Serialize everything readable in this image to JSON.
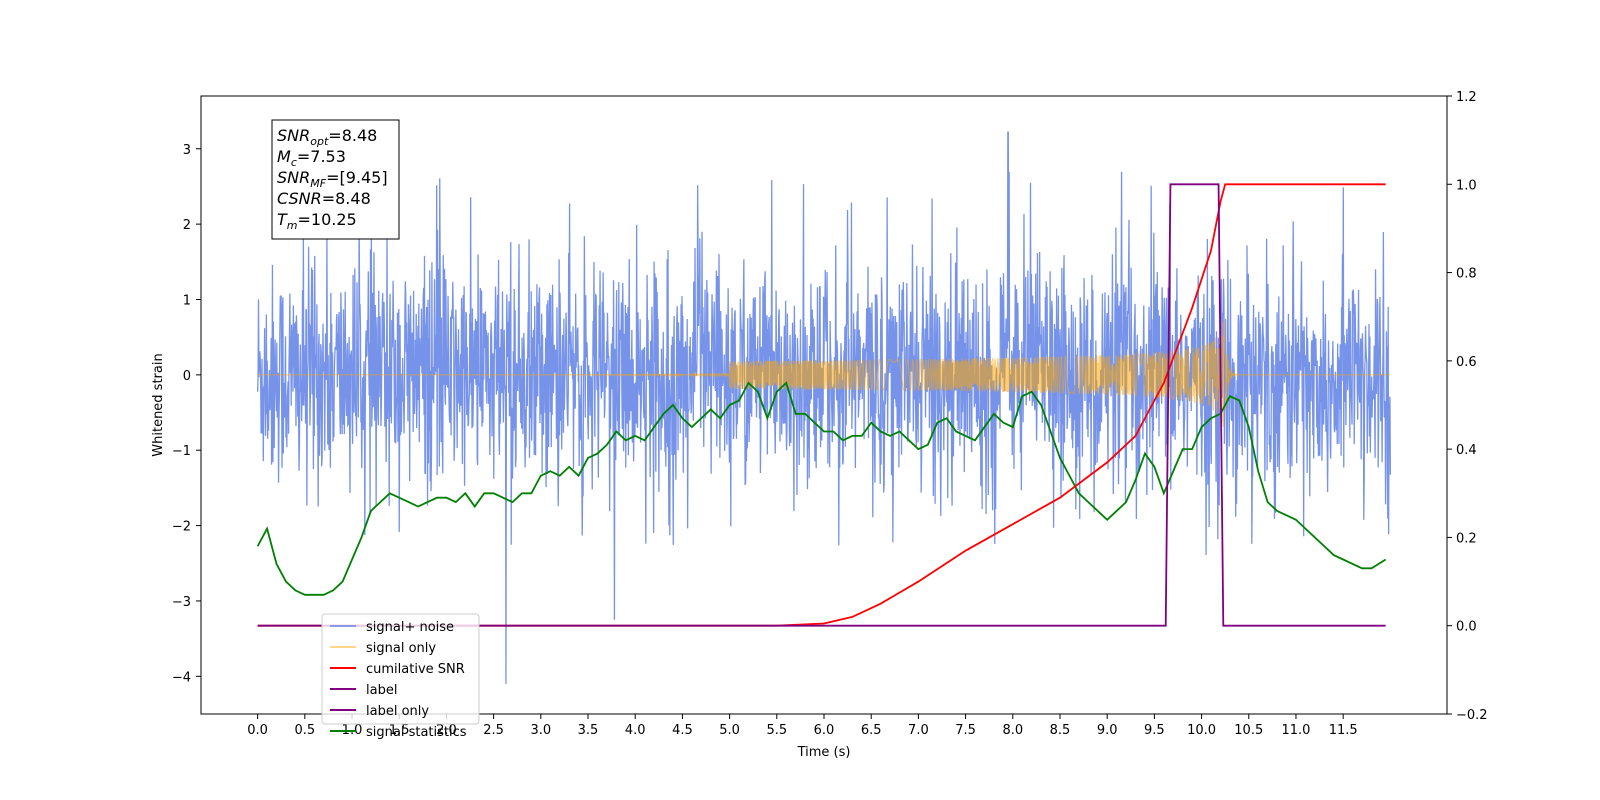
{
  "chart_data": {
    "type": "line",
    "xlabel": "Time (s)",
    "ylabel": "Whitened strain",
    "xlim": [
      -0.6,
      12.6
    ],
    "ylim_left": [
      -4.5,
      3.7
    ],
    "ylim_right": [
      -0.2,
      1.2
    ],
    "x_ticks": [
      "0.0",
      "0.5",
      "1.0",
      "1.5",
      "2.0",
      "2.5",
      "3.0",
      "3.5",
      "4.0",
      "4.5",
      "5.0",
      "5.5",
      "6.0",
      "6.5",
      "7.0",
      "7.5",
      "8.0",
      "8.5",
      "9.0",
      "9.5",
      "10.0",
      "10.5",
      "11.0",
      "11.5"
    ],
    "y_ticks_left": [
      "3",
      "2",
      "1",
      "0",
      "−1",
      "−2",
      "−3",
      "−4"
    ],
    "y_ticks_right": [
      "1.2",
      "1.0",
      "0.8",
      "0.6",
      "0.4",
      "0.2",
      "0.0",
      "−0.2"
    ],
    "grid": false,
    "legend_position": "lower-left",
    "annotation": [
      {
        "sym": "SNR",
        "sub": "opt",
        "val": "=8.48"
      },
      {
        "sym": "M",
        "sub": "c",
        "val": "=7.53"
      },
      {
        "sym": "SNR",
        "sub": "MF",
        "val": "=[9.45]"
      },
      {
        "sym": "CSNR",
        "sub": "",
        "val": "=8.48"
      },
      {
        "sym": "T",
        "sub": "m",
        "val": "=10.25"
      }
    ],
    "series": [
      {
        "name": "signal+ noise",
        "axis": "left",
        "color": "#4169e1",
        "style": "noise",
        "x_range": [
          0,
          12
        ],
        "envelope_typical": 1.5,
        "peaks": [
          {
            "x": 7.95,
            "y": 3.22
          },
          {
            "x": 2.63,
            "y": -4.1
          },
          {
            "x": 3.78,
            "y": -3.25
          }
        ]
      },
      {
        "name": "signal only",
        "axis": "left",
        "color": "#ffa500",
        "style": "chirp",
        "x_range": [
          0,
          10.25
        ],
        "amplitude_at_merger": 0.75
      },
      {
        "name": "cumilative SNR",
        "axis": "right",
        "color": "#ff0000",
        "x": [
          0,
          5.5,
          6.0,
          6.3,
          6.6,
          7.0,
          7.5,
          8.0,
          8.5,
          9.0,
          9.3,
          9.6,
          9.9,
          10.1,
          10.2,
          10.25,
          10.3,
          11.0,
          11.95
        ],
        "values": [
          0,
          0,
          0.005,
          0.02,
          0.05,
          0.1,
          0.17,
          0.23,
          0.29,
          0.37,
          0.43,
          0.55,
          0.72,
          0.85,
          0.96,
          1.0,
          1.0,
          1.0,
          1.0
        ]
      },
      {
        "name": "label",
        "axis": "right",
        "color": "#800080",
        "x": [
          0,
          9.62,
          9.67,
          10.18,
          10.23,
          11.95
        ],
        "values": [
          0,
          0,
          1,
          1,
          0,
          0
        ]
      },
      {
        "name": "label only",
        "axis": "right",
        "color": "#800080",
        "hidden": true,
        "x": [],
        "values": []
      },
      {
        "name": "signal statistics",
        "axis": "right",
        "color": "#008000",
        "x": [
          0,
          0.1,
          0.2,
          0.3,
          0.4,
          0.5,
          0.6,
          0.7,
          0.8,
          0.9,
          1.0,
          1.1,
          1.2,
          1.3,
          1.4,
          1.5,
          1.6,
          1.7,
          1.8,
          1.9,
          2.0,
          2.1,
          2.2,
          2.3,
          2.4,
          2.5,
          2.6,
          2.7,
          2.8,
          2.9,
          3.0,
          3.1,
          3.2,
          3.3,
          3.4,
          3.5,
          3.6,
          3.7,
          3.8,
          3.9,
          4.0,
          4.1,
          4.2,
          4.3,
          4.4,
          4.5,
          4.6,
          4.7,
          4.8,
          4.9,
          5.0,
          5.1,
          5.2,
          5.3,
          5.4,
          5.5,
          5.6,
          5.7,
          5.8,
          5.9,
          6.0,
          6.1,
          6.2,
          6.3,
          6.4,
          6.5,
          6.6,
          6.7,
          6.8,
          6.9,
          7.0,
          7.1,
          7.2,
          7.3,
          7.4,
          7.5,
          7.6,
          7.7,
          7.8,
          7.9,
          8.0,
          8.1,
          8.2,
          8.3,
          8.4,
          8.5,
          8.6,
          8.7,
          8.8,
          8.9,
          9.0,
          9.1,
          9.2,
          9.3,
          9.4,
          9.5,
          9.6,
          9.7,
          9.8,
          9.9,
          10.0,
          10.1,
          10.2,
          10.3,
          10.4,
          10.5,
          10.6,
          10.7,
          10.8,
          10.9,
          11.0,
          11.1,
          11.2,
          11.3,
          11.4,
          11.5,
          11.6,
          11.7,
          11.8,
          11.95
        ],
        "values": [
          0.18,
          0.22,
          0.14,
          0.1,
          0.08,
          0.07,
          0.07,
          0.07,
          0.08,
          0.1,
          0.15,
          0.2,
          0.26,
          0.28,
          0.3,
          0.29,
          0.28,
          0.27,
          0.28,
          0.29,
          0.29,
          0.28,
          0.3,
          0.27,
          0.3,
          0.3,
          0.29,
          0.28,
          0.3,
          0.3,
          0.34,
          0.35,
          0.34,
          0.36,
          0.34,
          0.38,
          0.39,
          0.41,
          0.44,
          0.42,
          0.43,
          0.42,
          0.45,
          0.48,
          0.5,
          0.47,
          0.45,
          0.47,
          0.49,
          0.47,
          0.5,
          0.51,
          0.55,
          0.53,
          0.47,
          0.53,
          0.55,
          0.48,
          0.48,
          0.46,
          0.44,
          0.44,
          0.42,
          0.43,
          0.43,
          0.46,
          0.44,
          0.43,
          0.44,
          0.42,
          0.4,
          0.41,
          0.46,
          0.47,
          0.44,
          0.43,
          0.42,
          0.45,
          0.48,
          0.46,
          0.45,
          0.52,
          0.53,
          0.5,
          0.44,
          0.38,
          0.34,
          0.3,
          0.28,
          0.26,
          0.24,
          0.26,
          0.28,
          0.33,
          0.39,
          0.36,
          0.3,
          0.35,
          0.4,
          0.4,
          0.45,
          0.47,
          0.48,
          0.52,
          0.51,
          0.45,
          0.35,
          0.28,
          0.26,
          0.25,
          0.24,
          0.22,
          0.2,
          0.18,
          0.16,
          0.15,
          0.14,
          0.13,
          0.13,
          0.15
        ]
      }
    ]
  }
}
